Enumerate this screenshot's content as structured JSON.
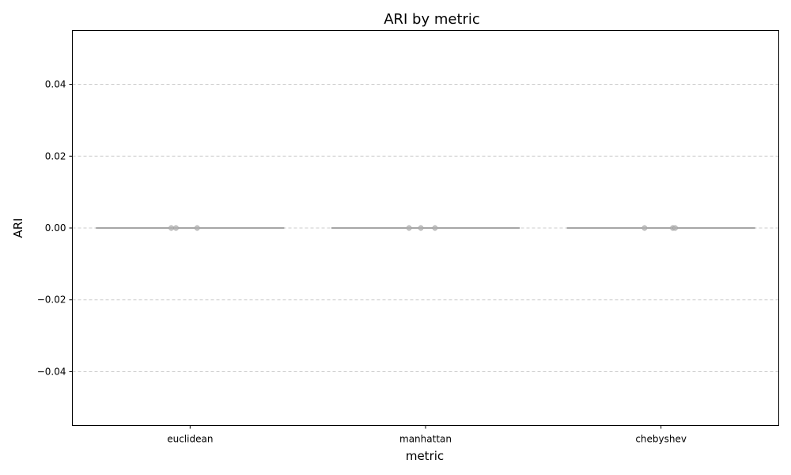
{
  "chart_data": {
    "type": "box-strip",
    "title": "ARI by metric",
    "xlabel": "metric",
    "ylabel": "ARI",
    "ylim": [
      -0.055,
      0.055
    ],
    "yticks": [
      0.04,
      0.02,
      0.0,
      -0.02,
      -0.04
    ],
    "ytick_labels": [
      "0.04",
      "0.02",
      "0.00",
      "−0.02",
      "−0.04"
    ],
    "grid": "y-dashed",
    "categories": [
      "euclidean",
      "manhattan",
      "chebyshev"
    ],
    "box_values": [
      0.0,
      0.0,
      0.0
    ],
    "points": [
      {
        "category": "euclidean",
        "offsets": [
          -0.08,
          -0.06,
          0.03
        ],
        "values": [
          0.0,
          0.0,
          0.0
        ]
      },
      {
        "category": "manhattan",
        "offsets": [
          -0.07,
          -0.02,
          0.04
        ],
        "values": [
          0.0,
          0.0,
          0.0
        ]
      },
      {
        "category": "chebyshev",
        "offsets": [
          -0.07,
          0.05,
          0.06
        ],
        "values": [
          0.0,
          0.0,
          0.0
        ]
      }
    ],
    "colors": {
      "box_line": "#707070",
      "point_fill": "#b0b0b0",
      "grid": "#cccccc",
      "axis": "#000000"
    }
  }
}
